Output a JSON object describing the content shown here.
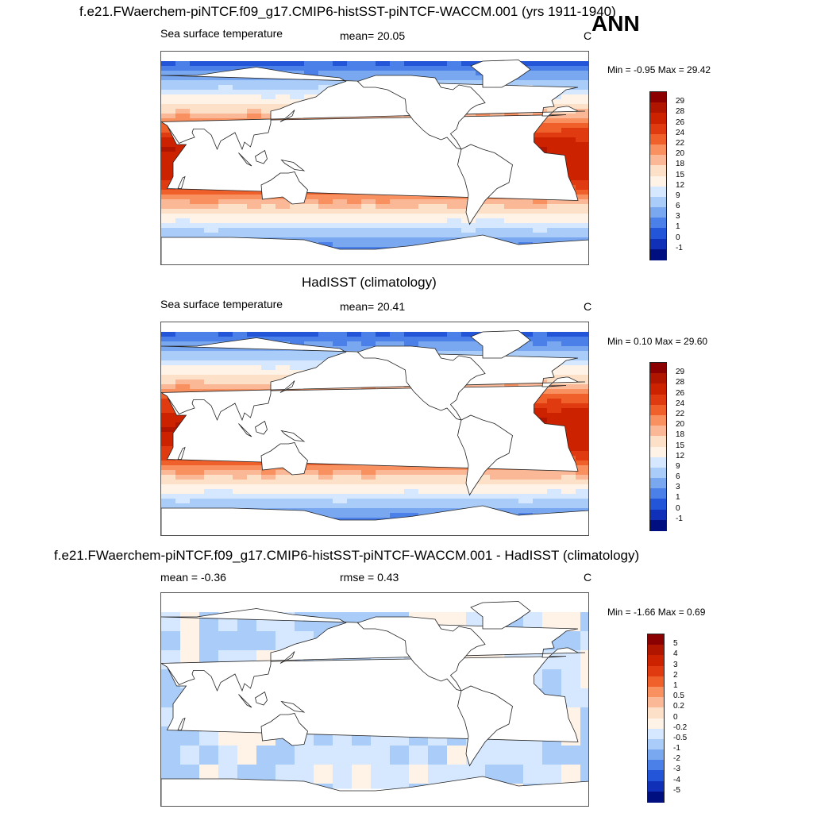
{
  "page": {
    "title_top": "f.e21.FWaerchem-piNTCF.f09_g17.CMIP6-histSST-piNTCF-WACCM.001 (yrs 1911-1940)",
    "season": "ANN"
  },
  "panels": [
    {
      "title": "",
      "left_label": "Sea surface temperature",
      "mid_label": "mean=  20.05",
      "units": "C",
      "minmax": "Min =  -0.95 Max =  29.42",
      "levels": [
        "29",
        "28",
        "26",
        "24",
        "22",
        "20",
        "18",
        "15",
        "12",
        "9",
        "6",
        "3",
        "1",
        "0",
        "-1"
      ],
      "colors": [
        "#8b0000",
        "#b01500",
        "#cc2200",
        "#e03a10",
        "#f0602a",
        "#f89060",
        "#fbb896",
        "#fde0c8",
        "#fff3e8",
        "#d6e8ff",
        "#aaccf8",
        "#7aa8f0",
        "#4a80e8",
        "#2255d8",
        "#1030b8",
        "#000f80"
      ],
      "field": "absolute"
    },
    {
      "title": "HadISST (climatology)",
      "left_label": "Sea surface temperature",
      "mid_label": "mean=  20.41",
      "units": "C",
      "minmax": "Min =   0.10 Max =  29.60",
      "levels": [
        "29",
        "28",
        "26",
        "24",
        "22",
        "20",
        "18",
        "15",
        "12",
        "9",
        "6",
        "3",
        "1",
        "0",
        "-1"
      ],
      "colors": [
        "#8b0000",
        "#b01500",
        "#cc2200",
        "#e03a10",
        "#f0602a",
        "#f89060",
        "#fbb896",
        "#fde0c8",
        "#fff3e8",
        "#d6e8ff",
        "#aaccf8",
        "#7aa8f0",
        "#4a80e8",
        "#2255d8",
        "#1030b8",
        "#000f80"
      ],
      "field": "absolute"
    },
    {
      "title": "f.e21.FWaerchem-piNTCF.f09_g17.CMIP6-histSST-piNTCF-WACCM.001 - HadISST (climatology)",
      "left_label": "mean =  -0.36",
      "mid_label": "rmse =   0.43",
      "units": "C",
      "minmax": "Min =  -1.66 Max =   0.69",
      "levels": [
        "5",
        "4",
        "3",
        "2",
        "1",
        "0.5",
        "0.2",
        "0",
        "-0.2",
        "-0.5",
        "-1",
        "-2",
        "-3",
        "-4",
        "-5"
      ],
      "colors": [
        "#8b0000",
        "#b01500",
        "#cc2200",
        "#e03a10",
        "#f0602a",
        "#f89060",
        "#fbb896",
        "#fde0c8",
        "#fff3e8",
        "#d6e8ff",
        "#aaccf8",
        "#7aa8f0",
        "#4a80e8",
        "#2255d8",
        "#1030b8",
        "#000f80"
      ],
      "field": "difference"
    }
  ]
}
